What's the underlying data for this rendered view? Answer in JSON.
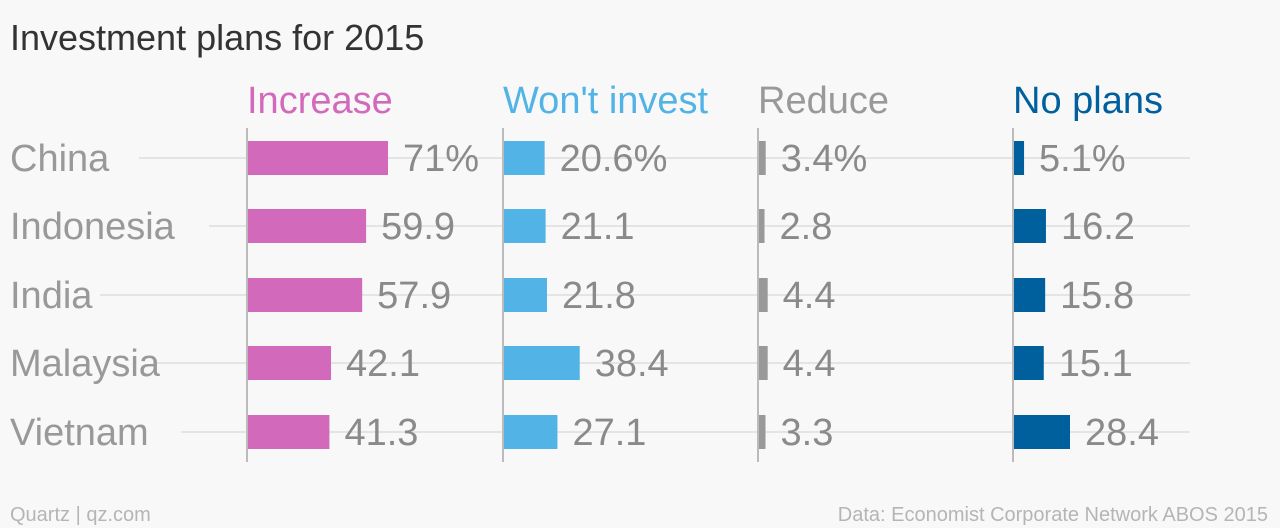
{
  "chart_data": {
    "type": "bar",
    "title": "Investment plans for 2015",
    "categories": [
      "China",
      "Indonesia",
      "India",
      "Malaysia",
      "Vietnam"
    ],
    "series": [
      {
        "name": "Increase",
        "color": "#d269bb",
        "values": [
          71,
          59.9,
          57.9,
          42.1,
          41.3
        ],
        "labels": [
          "71%",
          "59.9",
          "57.9",
          "42.1",
          "41.3"
        ]
      },
      {
        "name": "Won't invest",
        "color": "#52b3e6",
        "values": [
          20.6,
          21.1,
          21.8,
          38.4,
          27.1
        ],
        "labels": [
          "20.6%",
          "21.1",
          "21.8",
          "38.4",
          "27.1"
        ]
      },
      {
        "name": "Reduce",
        "color": "#999999",
        "values": [
          3.4,
          2.8,
          4.4,
          4.4,
          3.3
        ],
        "labels": [
          "3.4%",
          "2.8",
          "4.4",
          "4.4",
          "3.3"
        ]
      },
      {
        "name": "No plans",
        "color": "#00609e",
        "values": [
          5.1,
          16.2,
          15.8,
          15.1,
          28.4
        ],
        "labels": [
          "5.1%",
          "16.2",
          "15.8",
          "15.1",
          "28.4"
        ]
      }
    ],
    "legend": "column headers"
  },
  "footer": {
    "left": "Quartz | qz.com",
    "right": "Data: Economist Corporate Network ABOS 2015"
  }
}
